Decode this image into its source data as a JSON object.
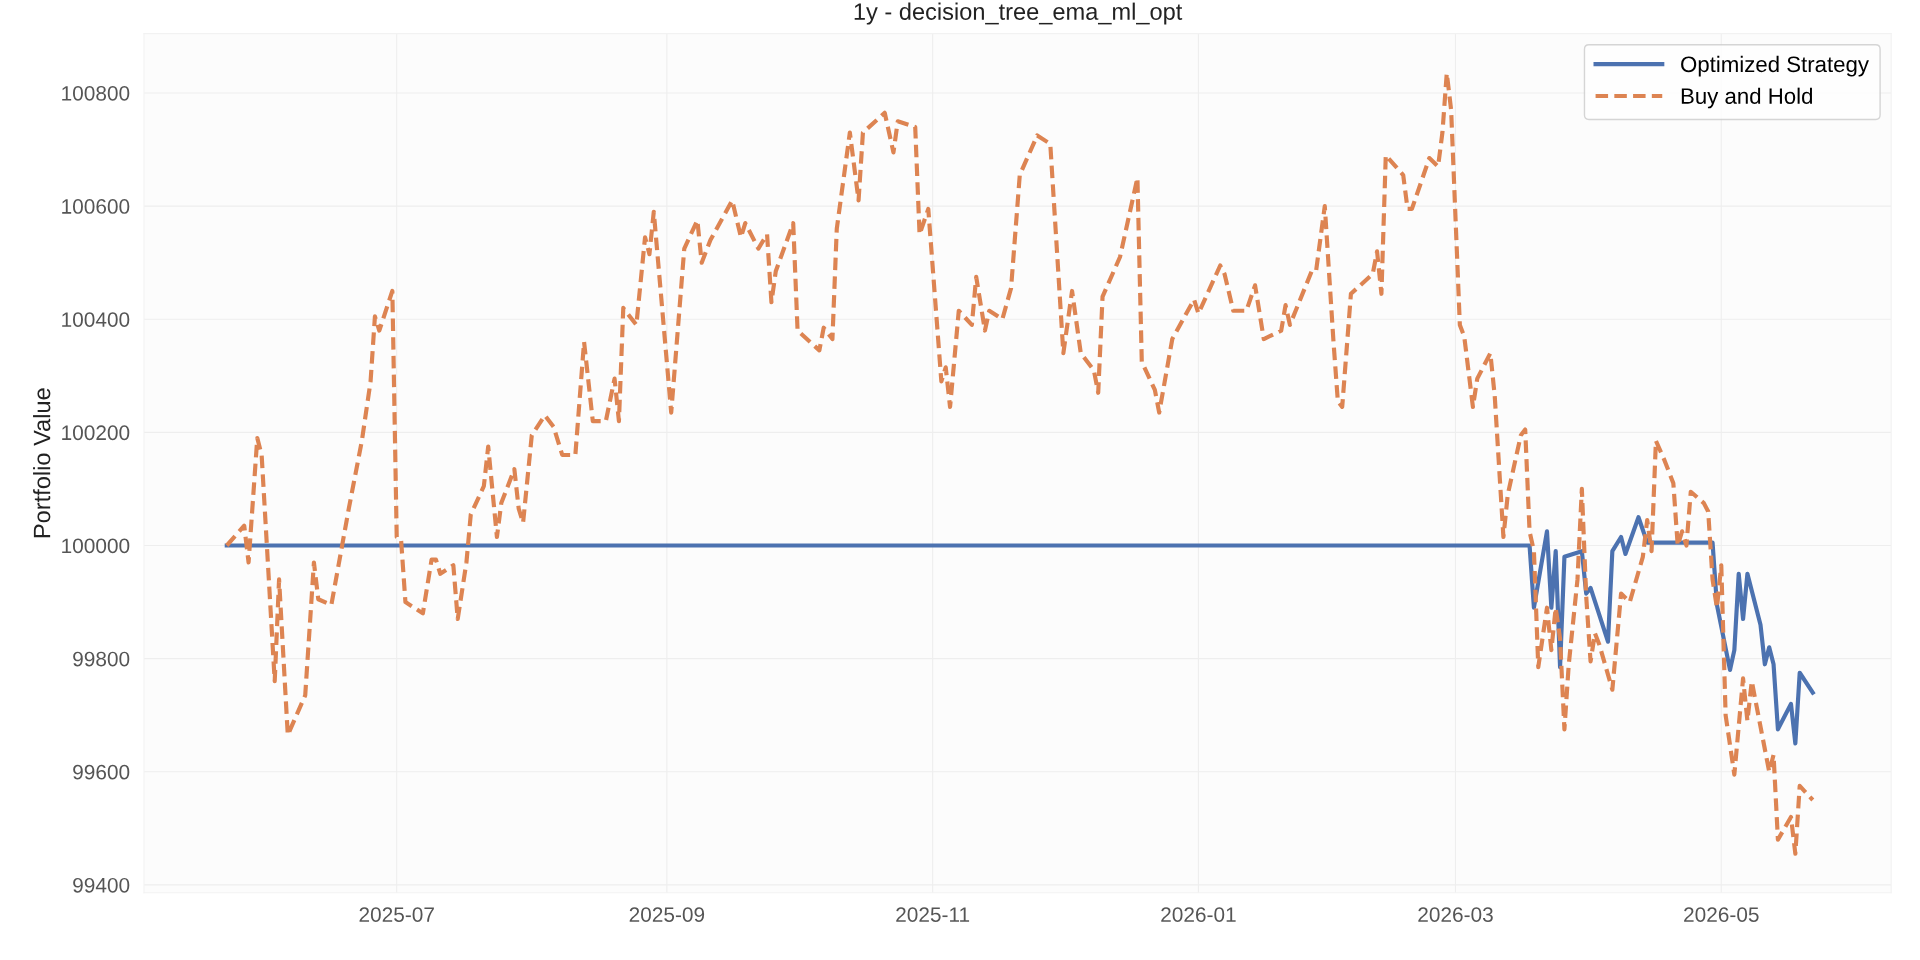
{
  "chart_data": {
    "type": "line",
    "title": "1y - decision_tree_ema_ml_opt",
    "ylabel": "Portfolio Value",
    "xlim": [
      "2025-05-04",
      "2026-06-09"
    ],
    "ylim": [
      99386,
      100905
    ],
    "xticks": [
      {
        "value": "2025-07-01",
        "label": "2025-07"
      },
      {
        "value": "2025-09-01",
        "label": "2025-09"
      },
      {
        "value": "2025-11-01",
        "label": "2025-11"
      },
      {
        "value": "2026-01-01",
        "label": "2026-01"
      },
      {
        "value": "2026-03-01",
        "label": "2026-03"
      },
      {
        "value": "2026-05-01",
        "label": "2026-05"
      }
    ],
    "yticks": [
      99400,
      99600,
      99800,
      100000,
      100200,
      100400,
      100600,
      100800
    ],
    "grid": true,
    "legend": "top right",
    "series": [
      {
        "name": "Optimized Strategy",
        "color": "#4c72b0",
        "line_style": "solid",
        "x": [
          "2025-05-23",
          "2026-03-18",
          "2026-03-19",
          "2026-03-22",
          "2026-03-23",
          "2026-03-24",
          "2026-03-25",
          "2026-03-26",
          "2026-03-30",
          "2026-03-31",
          "2026-04-01",
          "2026-04-05",
          "2026-04-06",
          "2026-04-08",
          "2026-04-09",
          "2026-04-12",
          "2026-04-14",
          "2026-04-29",
          "2026-04-30",
          "2026-05-03",
          "2026-05-04",
          "2026-05-05",
          "2026-05-06",
          "2026-05-07",
          "2026-05-10",
          "2026-05-11",
          "2026-05-12",
          "2026-05-13",
          "2026-05-14",
          "2026-05-17",
          "2026-05-18",
          "2026-05-19",
          "2026-05-22"
        ],
        "values": [
          100000,
          100000,
          99890,
          100025,
          99890,
          99990,
          99785,
          99980,
          99990,
          99915,
          99925,
          99830,
          99990,
          100015,
          99985,
          100050,
          100005,
          100005,
          99895,
          99780,
          99815,
          99950,
          99870,
          99950,
          99860,
          99790,
          99820,
          99790,
          99675,
          99720,
          99650,
          99775,
          99740
        ]
      },
      {
        "name": "Buy and Hold",
        "color": "#dd8452",
        "line_style": "dashed",
        "x": [
          "2025-05-23",
          "2025-05-27",
          "2025-05-28",
          "2025-05-30",
          "2025-05-31",
          "2025-06-03",
          "2025-06-04",
          "2025-06-06",
          "2025-06-10",
          "2025-06-12",
          "2025-06-13",
          "2025-06-16",
          "2025-06-20",
          "2025-06-23",
          "2025-06-25",
          "2025-06-26",
          "2025-06-27",
          "2025-06-30",
          "2025-07-01",
          "2025-07-02",
          "2025-07-03",
          "2025-07-07",
          "2025-07-09",
          "2025-07-10",
          "2025-07-11",
          "2025-07-14",
          "2025-07-15",
          "2025-07-17",
          "2025-07-18",
          "2025-07-21",
          "2025-07-22",
          "2025-07-24",
          "2025-07-25",
          "2025-07-28",
          "2025-07-29",
          "2025-07-30",
          "2025-08-01",
          "2025-08-04",
          "2025-08-06",
          "2025-08-08",
          "2025-08-11",
          "2025-08-13",
          "2025-08-15",
          "2025-08-16",
          "2025-08-18",
          "2025-08-20",
          "2025-08-21",
          "2025-08-22",
          "2025-08-25",
          "2025-08-27",
          "2025-08-28",
          "2025-08-29",
          "2025-09-02",
          "2025-09-05",
          "2025-09-08",
          "2025-09-09",
          "2025-09-11",
          "2025-09-16",
          "2025-09-18",
          "2025-09-19",
          "2025-09-22",
          "2025-09-24",
          "2025-09-25",
          "2025-09-26",
          "2025-09-30",
          "2025-10-01",
          "2025-10-06",
          "2025-10-07",
          "2025-10-09",
          "2025-10-10",
          "2025-10-13",
          "2025-10-15",
          "2025-10-16",
          "2025-10-21",
          "2025-10-23",
          "2025-10-24",
          "2025-10-28",
          "2025-10-29",
          "2025-10-31",
          "2025-11-03",
          "2025-11-04",
          "2025-11-05",
          "2025-11-07",
          "2025-11-10",
          "2025-11-11",
          "2025-11-13",
          "2025-11-14",
          "2025-11-17",
          "2025-11-19",
          "2025-11-21",
          "2025-11-25",
          "2025-11-28",
          "2025-12-01",
          "2025-12-03",
          "2025-12-05",
          "2025-12-08",
          "2025-12-09",
          "2025-12-10",
          "2025-12-14",
          "2025-12-18",
          "2025-12-19",
          "2025-12-22",
          "2025-12-23",
          "2025-12-26",
          "2025-12-31",
          "2026-01-01",
          "2026-01-06",
          "2026-01-07",
          "2026-01-09",
          "2026-01-12",
          "2026-01-14",
          "2026-01-16",
          "2026-01-20",
          "2026-01-21",
          "2026-01-22",
          "2026-01-27",
          "2026-01-28",
          "2026-01-30",
          "2026-02-01",
          "2026-02-02",
          "2026-02-03",
          "2026-02-05",
          "2026-02-10",
          "2026-02-11",
          "2026-02-12",
          "2026-02-13",
          "2026-02-17",
          "2026-02-18",
          "2026-02-19",
          "2026-02-23",
          "2026-02-25",
          "2026-02-26",
          "2026-02-27",
          "2026-02-28",
          "2026-03-02",
          "2026-03-03",
          "2026-03-05",
          "2026-03-06",
          "2026-03-09",
          "2026-03-10",
          "2026-03-12",
          "2026-03-13",
          "2026-03-16",
          "2026-03-17",
          "2026-03-18",
          "2026-03-19",
          "2026-03-20",
          "2026-03-22",
          "2026-03-23",
          "2026-03-24",
          "2026-03-25",
          "2026-03-26",
          "2026-03-27",
          "2026-03-29",
          "2026-03-30",
          "2026-03-31",
          "2026-04-01",
          "2026-04-02",
          "2026-04-03",
          "2026-04-06",
          "2026-04-08",
          "2026-04-10",
          "2026-04-13",
          "2026-04-14",
          "2026-04-15",
          "2026-04-16",
          "2026-04-18",
          "2026-04-20",
          "2026-04-21",
          "2026-04-22",
          "2026-04-23",
          "2026-04-24",
          "2026-04-27",
          "2026-04-28",
          "2026-04-29",
          "2026-04-30",
          "2026-05-01",
          "2026-05-02",
          "2026-05-04",
          "2026-05-06",
          "2026-05-07",
          "2026-05-08",
          "2026-05-12",
          "2026-05-13",
          "2026-05-14",
          "2026-05-17",
          "2026-05-18",
          "2026-05-19",
          "2026-05-22"
        ],
        "values": [
          100000,
          100035,
          99970,
          100190,
          100160,
          99760,
          99940,
          99665,
          99735,
          99970,
          99905,
          99895,
          100065,
          100185,
          100290,
          100405,
          100380,
          100450,
          100015,
          100010,
          99900,
          99880,
          99975,
          99975,
          99950,
          99965,
          99870,
          99970,
          100055,
          100105,
          100175,
          100015,
          100075,
          100135,
          100065,
          100040,
          100195,
          100230,
          100210,
          100160,
          100160,
          100360,
          100220,
          100220,
          100220,
          100295,
          100220,
          100420,
          100390,
          100545,
          100515,
          100590,
          100235,
          100525,
          100575,
          100500,
          100540,
          100610,
          100545,
          100570,
          100525,
          100550,
          100430,
          100485,
          100570,
          100380,
          100345,
          100385,
          100365,
          100560,
          100730,
          100610,
          100730,
          100765,
          100695,
          100750,
          100740,
          100550,
          100595,
          100290,
          100315,
          100245,
          100415,
          100390,
          100475,
          100380,
          100415,
          100400,
          100455,
          100655,
          100725,
          100710,
          100340,
          100450,
          100340,
          100310,
          100270,
          100440,
          100510,
          100650,
          100325,
          100275,
          100235,
          100365,
          100435,
          100410,
          100495,
          100480,
          100415,
          100415,
          100460,
          100365,
          100380,
          100425,
          100390,
          100485,
          100485,
          100600,
          100360,
          100255,
          100245,
          100445,
          100480,
          100520,
          100445,
          100690,
          100655,
          100595,
          100595,
          100685,
          100670,
          100730,
          100835,
          100770,
          100390,
          100370,
          100245,
          100295,
          100340,
          100265,
          100015,
          100090,
          100195,
          100205,
          100025,
          99990,
          99785,
          99890,
          99815,
          99890,
          99835,
          99675,
          99790,
          99940,
          100100,
          99910,
          99795,
          99845,
          99825,
          99745,
          99915,
          99900,
          99980,
          100045,
          99990,
          100185,
          100150,
          100110,
          100000,
          100025,
          100000,
          100095,
          100075,
          100060,
          99940,
          99890,
          99965,
          99700,
          99595,
          99765,
          99690,
          99760,
          99600,
          99630,
          99480,
          99520,
          99455,
          99575,
          99550
        ]
      }
    ]
  }
}
